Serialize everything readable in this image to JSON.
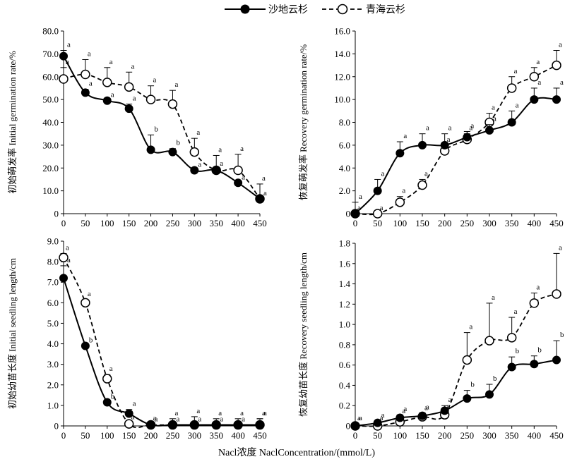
{
  "legend": {
    "series1": "沙地云杉",
    "series2": "青海云杉"
  },
  "xlabel": "Nacl浓度 NaclConcentration/(mmol/L)",
  "chart_data": [
    {
      "id": "initial-germination",
      "type": "line",
      "ylabel": "初始萌发率 Initial germination rate/%",
      "x": [
        0,
        50,
        100,
        150,
        200,
        250,
        300,
        350,
        400,
        450
      ],
      "xlim": [
        0,
        450
      ],
      "ylim": [
        0,
        80
      ],
      "yticks": [
        "0",
        "10.0",
        "20.0",
        "30.0",
        "40.0",
        "50.0",
        "60.0",
        "70.0",
        "80.0"
      ],
      "ytick_values": [
        0,
        10,
        20,
        30,
        40,
        50,
        60,
        70,
        80
      ],
      "series": [
        {
          "name": "沙地云杉",
          "values": [
            69,
            53,
            49.5,
            46,
            28,
            27,
            19,
            19,
            13.5,
            6.5
          ],
          "errors": [
            2.5,
            1.5,
            0,
            2,
            6.5,
            1.5,
            0,
            0.5,
            0,
            0
          ],
          "labels": [
            "a",
            "a",
            "a",
            "a",
            "b",
            "b",
            "a",
            "a",
            "a",
            "a"
          ]
        },
        {
          "name": "青海云杉",
          "values": [
            59,
            61,
            57.5,
            55.5,
            50,
            48,
            27,
            19,
            19,
            6.5
          ],
          "errors": [
            5,
            6.5,
            6.5,
            6.5,
            6,
            6,
            6,
            6.5,
            7,
            6.5
          ],
          "labels": [
            "a",
            "a",
            "a",
            "a",
            "a",
            "a",
            "a",
            "a",
            "a",
            "a"
          ]
        }
      ]
    },
    {
      "id": "recovery-germination",
      "type": "line",
      "ylabel": "恢复萌发率 Recovery germination rate/%",
      "x": [
        0,
        50,
        100,
        150,
        200,
        250,
        300,
        350,
        400,
        450
      ],
      "xlim": [
        0,
        450
      ],
      "ylim": [
        0,
        16
      ],
      "yticks": [
        "0",
        "2.0",
        "4.0",
        "6.0",
        "8.0",
        "10.0",
        "12.0",
        "14.0",
        "16.0"
      ],
      "ytick_values": [
        0,
        2,
        4,
        6,
        8,
        10,
        12,
        14,
        16
      ],
      "series": [
        {
          "name": "沙地云杉",
          "values": [
            0,
            2,
            5.3,
            6,
            6,
            6.7,
            7.3,
            8,
            10,
            10
          ],
          "errors": [
            1,
            1,
            1,
            1,
            1,
            0.5,
            0.5,
            1,
            1,
            1
          ],
          "labels": [
            "a",
            "a",
            "a",
            "a",
            "a",
            "a",
            "a",
            "a",
            "a",
            "a"
          ]
        },
        {
          "name": "青海云杉",
          "values": [
            0,
            0,
            1,
            2.5,
            5.5,
            6.5,
            8,
            11,
            12,
            13
          ],
          "errors": [
            0,
            0,
            0.5,
            0.5,
            0.5,
            0.5,
            0.8,
            1,
            0.8,
            1.3
          ],
          "labels": [
            "a",
            "a",
            "a",
            "a",
            "a",
            "a",
            "a",
            "a",
            "a",
            "a"
          ]
        }
      ]
    },
    {
      "id": "initial-seedling-length",
      "type": "line",
      "ylabel": "初始幼苗长度 Initial seedling length/cm",
      "x": [
        0,
        50,
        100,
        150,
        200,
        250,
        300,
        350,
        400,
        450
      ],
      "xlim": [
        0,
        450
      ],
      "ylim": [
        0,
        9
      ],
      "yticks": [
        "0",
        "1.0",
        "2.0",
        "3.0",
        "4.0",
        "5.0",
        "6.0",
        "7.0",
        "8.0",
        "9.0"
      ],
      "ytick_values": [
        0,
        1,
        2,
        3,
        4,
        5,
        6,
        7,
        8,
        9
      ],
      "series": [
        {
          "name": "沙地云杉",
          "values": [
            7.2,
            3.9,
            1.15,
            0.6,
            0.05,
            0.05,
            0.05,
            0.05,
            0.05,
            0.05
          ],
          "errors": [
            0.6,
            0,
            0,
            0.2,
            0,
            0,
            0,
            0,
            0,
            0.3
          ],
          "labels": [
            "a",
            "b",
            "b",
            "a",
            "a",
            "a",
            "a",
            "a",
            "a",
            "a"
          ]
        },
        {
          "name": "青海云杉",
          "values": [
            8.2,
            6,
            2.3,
            0.1,
            0.05,
            0.05,
            0.05,
            0.05,
            0.05,
            0.05
          ],
          "errors": [
            0.2,
            0.15,
            0.2,
            0.05,
            0.05,
            0.3,
            0.4,
            0.3,
            0.3,
            0.3
          ],
          "labels": [
            "a",
            "a",
            "a",
            "a",
            "a",
            "a",
            "a",
            "a",
            "a",
            "a"
          ]
        }
      ]
    },
    {
      "id": "recovery-seedling-length",
      "type": "line",
      "ylabel": "恢复幼苗长度 Recovery seedling length/cm",
      "x": [
        0,
        50,
        100,
        150,
        200,
        250,
        300,
        350,
        400,
        450
      ],
      "xlim": [
        0,
        450
      ],
      "ylim": [
        0,
        1.8
      ],
      "yticks": [
        "0",
        "0.2",
        "0.4",
        "0.6",
        "0.8",
        "1.0",
        "1.2",
        "1.4",
        "1.6",
        "1.8"
      ],
      "ytick_values": [
        0,
        0.2,
        0.4,
        0.6,
        0.8,
        1.0,
        1.2,
        1.4,
        1.6,
        1.8
      ],
      "series": [
        {
          "name": "沙地云杉",
          "values": [
            0,
            0.03,
            0.08,
            0.1,
            0.15,
            0.27,
            0.31,
            0.58,
            0.61,
            0.65
          ],
          "errors": [
            0.02,
            0.02,
            0.03,
            0.03,
            0.05,
            0.08,
            0.1,
            0.1,
            0.08,
            0.19
          ],
          "labels": [
            "a",
            "a",
            "a",
            "a",
            "a",
            "b",
            "b",
            "b",
            "b",
            "b"
          ]
        },
        {
          "name": "青海云杉",
          "values": [
            0,
            0,
            0.04,
            0.09,
            0.11,
            0.65,
            0.84,
            0.87,
            1.21,
            1.3
          ],
          "errors": [
            0.02,
            0.02,
            0.05,
            0.03,
            0.03,
            0.27,
            0.37,
            0.2,
            0.1,
            0.4
          ],
          "labels": [
            "a",
            "a",
            "a",
            "a",
            "a",
            "a",
            "a",
            "a",
            "a",
            "a"
          ]
        }
      ]
    }
  ]
}
